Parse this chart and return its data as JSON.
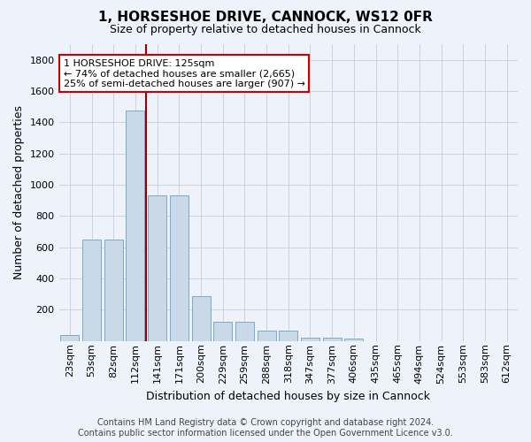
{
  "title_line1": "1, HORSESHOE DRIVE, CANNOCK, WS12 0FR",
  "title_line2": "Size of property relative to detached houses in Cannock",
  "xlabel": "Distribution of detached houses by size in Cannock",
  "ylabel": "Number of detached properties",
  "bar_color": "#c9d9e8",
  "bar_edge_color": "#7aaac8",
  "grid_color": "#cccccc",
  "background_color": "#eef2fa",
  "vline_color": "#990000",
  "vline_pos": 3.5,
  "annotation_text": "1 HORSESHOE DRIVE: 125sqm\n← 74% of detached houses are smaller (2,665)\n25% of semi-detached houses are larger (907) →",
  "annotation_box_color": "#ffffff",
  "annotation_box_edge": "#cc0000",
  "footer_line1": "Contains HM Land Registry data © Crown copyright and database right 2024.",
  "footer_line2": "Contains public sector information licensed under the Open Government Licence v3.0.",
  "categories": [
    "23sqm",
    "53sqm",
    "82sqm",
    "112sqm",
    "141sqm",
    "171sqm",
    "200sqm",
    "229sqm",
    "259sqm",
    "288sqm",
    "318sqm",
    "347sqm",
    "377sqm",
    "406sqm",
    "435sqm",
    "465sqm",
    "494sqm",
    "524sqm",
    "553sqm",
    "583sqm",
    "612sqm"
  ],
  "values": [
    40,
    651,
    651,
    1474,
    935,
    935,
    290,
    125,
    125,
    65,
    65,
    22,
    22,
    15,
    0,
    0,
    0,
    0,
    0,
    0,
    0
  ],
  "ylim": [
    0,
    1900
  ],
  "yticks": [
    0,
    200,
    400,
    600,
    800,
    1000,
    1200,
    1400,
    1600,
    1800
  ],
  "title_fontsize": 11,
  "subtitle_fontsize": 9,
  "ylabel_fontsize": 9,
  "xlabel_fontsize": 9,
  "tick_fontsize": 8,
  "annotation_fontsize": 8,
  "footer_fontsize": 7
}
